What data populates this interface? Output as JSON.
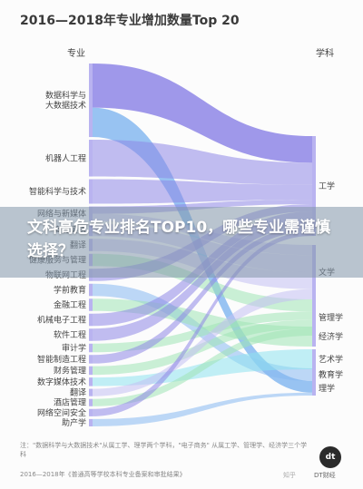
{
  "chart_data": {
    "type": "sankey",
    "title": "2016—2018年专业增加数量Top 20",
    "left_header": "专业",
    "right_header": "学科",
    "sources": [
      {
        "label": "数据科学与\n大数据技术",
        "value": 6
      },
      {
        "label": "机器人工程",
        "value": 3
      },
      {
        "label": "智能科学与技术",
        "value": 2
      },
      {
        "label": "网络与新媒体",
        "value": 1.2
      },
      {
        "label": "商务英语",
        "value": 1
      },
      {
        "label": "翻译",
        "value": 1
      },
      {
        "label": "健康服务与管理",
        "value": 1
      },
      {
        "label": "物联网工程",
        "value": 1
      },
      {
        "label": "学前教育",
        "value": 1
      },
      {
        "label": "金融工程",
        "value": 1
      },
      {
        "label": "机械电子工程",
        "value": 1
      },
      {
        "label": "软件工程",
        "value": 1
      },
      {
        "label": "审计学",
        "value": 0.7
      },
      {
        "label": "智能制造工程",
        "value": 0.7
      },
      {
        "label": "财务管理",
        "value": 0.7
      },
      {
        "label": "数字媒体技术",
        "value": 0.7
      },
      {
        "label": "翻译",
        "value": 0.6
      },
      {
        "label": "酒店管理",
        "value": 0.6
      },
      {
        "label": "网络空间安全",
        "value": 0.6
      },
      {
        "label": "助产学",
        "value": 0.6
      }
    ],
    "targets": [
      "工学",
      "文学",
      "管理学",
      "经济学",
      "艺术学",
      "教育学",
      "理学"
    ],
    "note": "注：\"数据科学与大数据技术\"从属工学、理学两个学科，\"电子商务\"\n从属工学、管理学、经济学三个学科",
    "source": "2016—2018年《普通高等学校本科专业备案和审批结果》"
  },
  "banner": {
    "headline": "文科高危专业排名TOP10，哪些专业需谨慎选择？"
  },
  "branding": {
    "logo_text": "dt",
    "logo_label": "DT财经",
    "watermark": "知乎"
  },
  "colors": {
    "flow_main": "#8e86e6",
    "flow_light": "#c3bff2",
    "flow_green": "#9fe3b4",
    "flow_cyan": "#8ee1ef",
    "flow_blue": "#86b8f0",
    "bar": "#b9b3f0"
  }
}
